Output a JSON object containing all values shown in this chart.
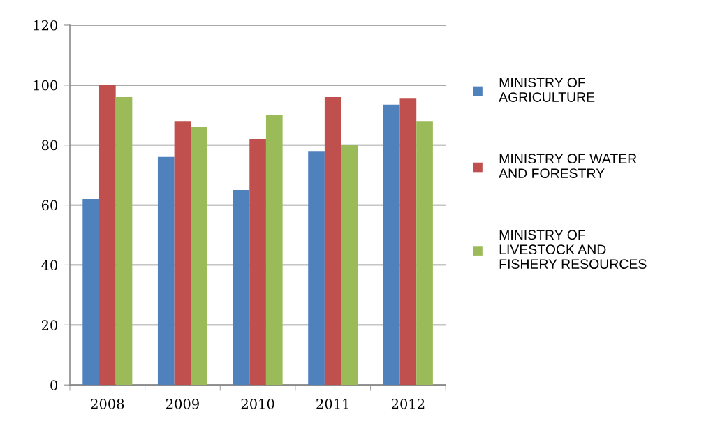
{
  "chart_data": {
    "type": "bar",
    "categories": [
      "2008",
      "2009",
      "2010",
      "2011",
      "2012"
    ],
    "series": [
      {
        "name": "MINISTRY OF\nAGRICULTURE",
        "color": "#4f81bd",
        "values": [
          62,
          76,
          65,
          78,
          93.5
        ]
      },
      {
        "name": "MINISTRY OF WATER\nAND FORESTRY",
        "color": "#c0504d",
        "values": [
          100,
          88,
          82,
          96,
          95.5
        ]
      },
      {
        "name": "MINISTRY OF\nLIVESTOCK AND\nFISHERY RESOURCES",
        "color": "#9bbb59",
        "values": [
          96,
          86,
          90,
          80,
          88
        ]
      }
    ],
    "ylim": [
      0,
      120
    ],
    "yticks": [
      0,
      20,
      40,
      60,
      80,
      100,
      120
    ],
    "grid": "y",
    "legend": "right"
  }
}
